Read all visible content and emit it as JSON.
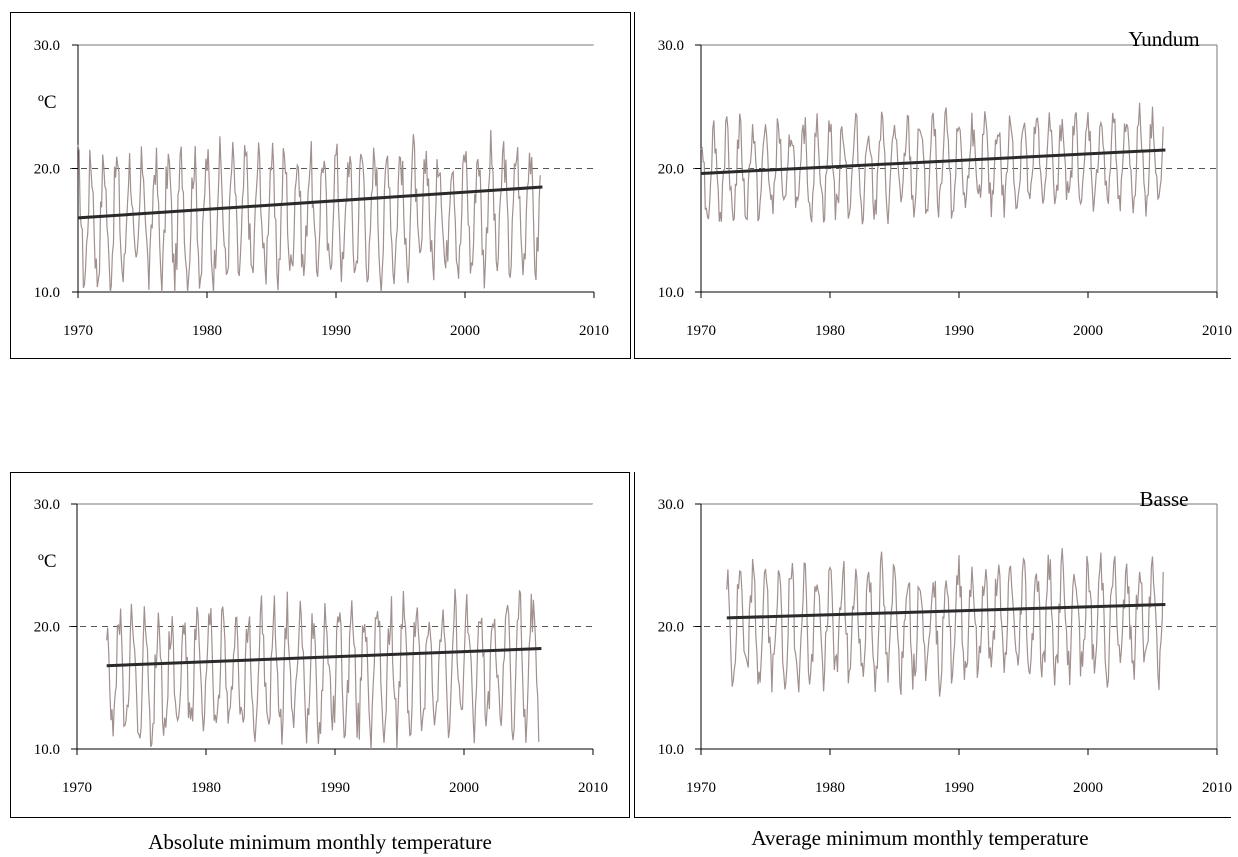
{
  "captions": {
    "left": "Absolute minimum monthly temperature",
    "right": "Average minimum monthly temperature"
  },
  "colors": {
    "series": "#a0908e",
    "trend": "#2a2a2a",
    "axis": "#000000",
    "ref_line": "#555555"
  },
  "chart_data": [
    {
      "type": "line",
      "station": "",
      "unit_label": "ºC",
      "xlim": [
        1970,
        2010
      ],
      "ylim": [
        10.0,
        30.0
      ],
      "x_ticks": [
        "1970",
        "1980",
        "1990",
        "2000",
        "2010"
      ],
      "y_ticks": [
        "10.0",
        "20.0",
        "30.0"
      ],
      "reference_line_y": 20.0,
      "series_start": 1970.0,
      "series_end": 2005.8,
      "seasonal_low": 10.0,
      "seasonal_high": 21.5,
      "trend": {
        "x": [
          1970.0,
          2006.0
        ],
        "y": [
          16.0,
          18.5
        ]
      }
    },
    {
      "type": "line",
      "station": "Yundum",
      "unit_label": "",
      "xlim": [
        1970,
        2010
      ],
      "ylim": [
        10.0,
        30.0
      ],
      "x_ticks": [
        "1970",
        "1980",
        "1990",
        "2000",
        "2010"
      ],
      "y_ticks": [
        "10.0",
        "20.0",
        "30.0"
      ],
      "reference_line_y": 20.0,
      "series_start": 1970.0,
      "series_end": 2005.8,
      "seasonal_low": 15.5,
      "seasonal_high": 23.8,
      "trend": {
        "x": [
          1970.0,
          2006.0
        ],
        "y": [
          19.6,
          21.5
        ]
      }
    },
    {
      "type": "line",
      "station": "",
      "unit_label": "ºC",
      "xlim": [
        1970,
        2010
      ],
      "ylim": [
        10.0,
        30.0
      ],
      "x_ticks": [
        "1970",
        "1980",
        "1990",
        "2000",
        "2010"
      ],
      "y_ticks": [
        "10.0",
        "20.0",
        "30.0"
      ],
      "reference_line_y": 20.0,
      "series_start": 1972.3,
      "series_end": 2005.8,
      "seasonal_low": 10.0,
      "seasonal_high": 21.5,
      "trend": {
        "x": [
          1972.3,
          2006.0
        ],
        "y": [
          16.8,
          18.2
        ]
      }
    },
    {
      "type": "line",
      "station": "Basse",
      "unit_label": "",
      "xlim": [
        1970,
        2010
      ],
      "ylim": [
        10.0,
        30.0
      ],
      "x_ticks": [
        "1970",
        "1980",
        "1990",
        "2000",
        "2010"
      ],
      "y_ticks": [
        "10.0",
        "20.0",
        "30.0"
      ],
      "reference_line_y": 20.0,
      "series_start": 1972.0,
      "series_end": 2005.8,
      "seasonal_low": 14.5,
      "seasonal_high": 25.0,
      "trend": {
        "x": [
          1972.0,
          2006.0
        ],
        "y": [
          20.7,
          21.8
        ]
      }
    }
  ]
}
